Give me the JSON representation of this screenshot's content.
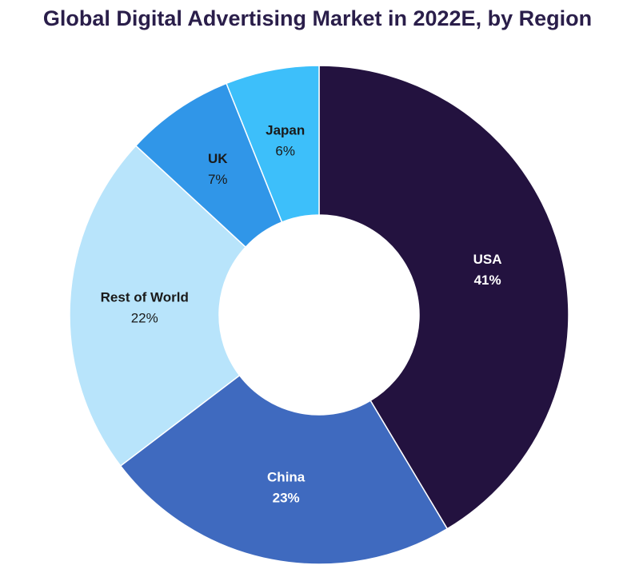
{
  "chart_data": {
    "type": "pie",
    "title": "Global Digital Advertising Market in 2022E, by Region",
    "donut": true,
    "slices": [
      {
        "label": "USA",
        "value": 41,
        "display": "41%",
        "color": "#23123f",
        "text_color": "#ffffff"
      },
      {
        "label": "China",
        "value": 23,
        "display": "23%",
        "color": "#3f6abf",
        "text_color": "#ffffff"
      },
      {
        "label": "Rest of World",
        "value": 22,
        "display": "22%",
        "color": "#b8e4fb",
        "text_color": "#1a1a1a"
      },
      {
        "label": "UK",
        "value": 7,
        "display": "7%",
        "color": "#3096e8",
        "text_color": "#1a1a1a"
      },
      {
        "label": "Japan",
        "value": 6,
        "display": "6%",
        "color": "#3dbffa",
        "text_color": "#1a1a1a"
      }
    ]
  }
}
